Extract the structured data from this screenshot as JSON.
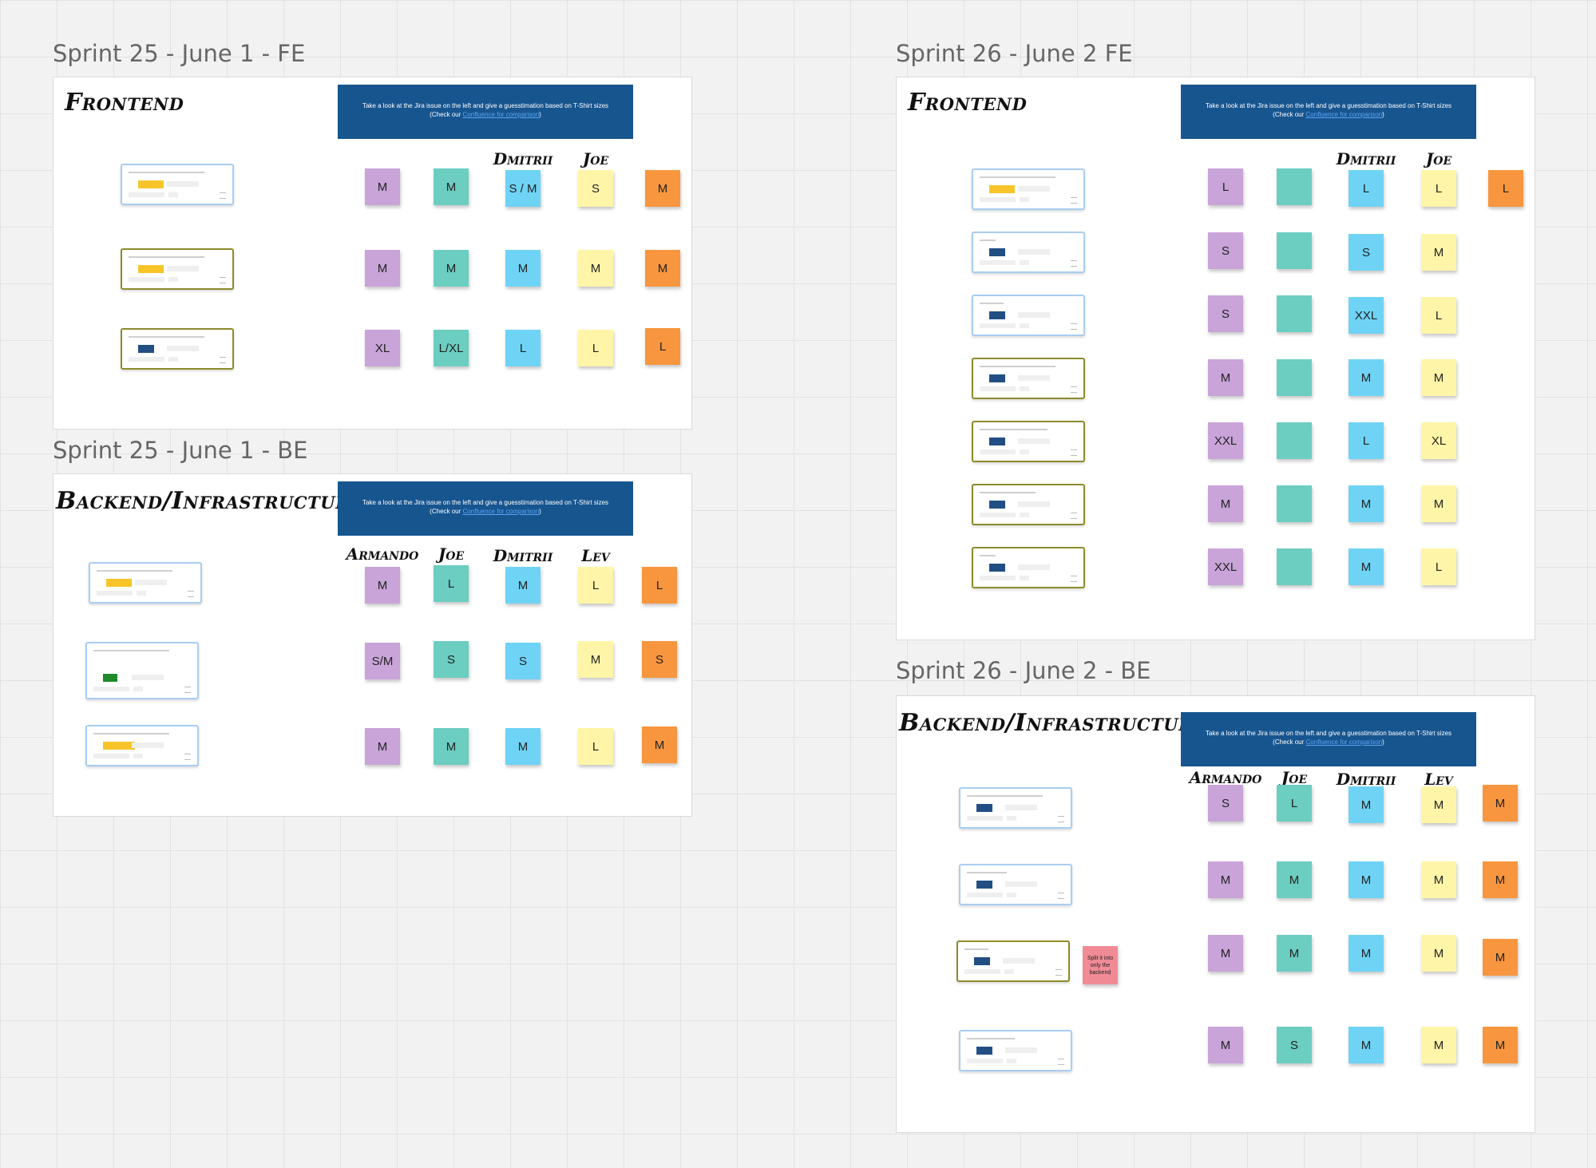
{
  "banner": {
    "line1": "Take a look at the Jira issue on the left and give a guesstimation based on T-Shirt sizes",
    "line2_prefix": "(Check our ",
    "link": "Confluence for comparison",
    "line2_suffix": ")"
  },
  "frames": {
    "s25fe": {
      "title": "Sprint 25 - June 1 - FE",
      "heading": "Frontend",
      "columns": [
        "Dmitrii",
        "Joe"
      ],
      "rows": [
        [
          "M",
          "M",
          "S / M",
          "S",
          "M"
        ],
        [
          "M",
          "M",
          "M",
          "M",
          "M"
        ],
        [
          "XL",
          "L/XL",
          "L",
          "L",
          "L"
        ]
      ]
    },
    "s25be": {
      "title": "Sprint 25 - June 1 - BE",
      "heading": "Backend/Infrastructure",
      "columns": [
        "Armando",
        "Joe",
        "Dmitrii",
        "Lev"
      ],
      "rows": [
        [
          "M",
          "L",
          "M",
          "L",
          "L"
        ],
        [
          "S/M",
          "S",
          "S",
          "M",
          "S"
        ],
        [
          "M",
          "M",
          "M",
          "L",
          "M"
        ]
      ]
    },
    "s26fe": {
      "title": "Sprint 26 - June 2 FE",
      "heading": "Frontend",
      "columns": [
        "Dmitrii",
        "Joe"
      ],
      "rows": [
        [
          "L",
          "",
          "L",
          "L",
          "L"
        ],
        [
          "S",
          "",
          "S",
          "M"
        ],
        [
          "S",
          "",
          "XXL",
          "L"
        ],
        [
          "M",
          "",
          "M",
          "M"
        ],
        [
          "XXL",
          "",
          "L",
          "XL"
        ],
        [
          "M",
          "",
          "M",
          "M"
        ],
        [
          "XXL",
          "",
          "M",
          "L"
        ]
      ]
    },
    "s26be": {
      "title": "Sprint 26 - June 2 - BE",
      "heading": "Backend/Infrastructure",
      "columns": [
        "Armando",
        "Joe",
        "Dmitrii",
        "Lev"
      ],
      "note": "Split it into only the backend",
      "rows": [
        [
          "S",
          "L",
          "M",
          "M",
          "M"
        ],
        [
          "M",
          "M",
          "M",
          "M",
          "M"
        ],
        [
          "M",
          "M",
          "M",
          "M",
          "M"
        ],
        [
          "M",
          "S",
          "M",
          "M",
          "M"
        ]
      ]
    }
  },
  "colors": {
    "purple": "#c8a4d8",
    "teal": "#6ccdc1",
    "blue": "#6fd3f5",
    "yellow": "#fff5a8",
    "orange": "#f7963e",
    "pink": "#f08b96",
    "banner": "#17558f"
  }
}
